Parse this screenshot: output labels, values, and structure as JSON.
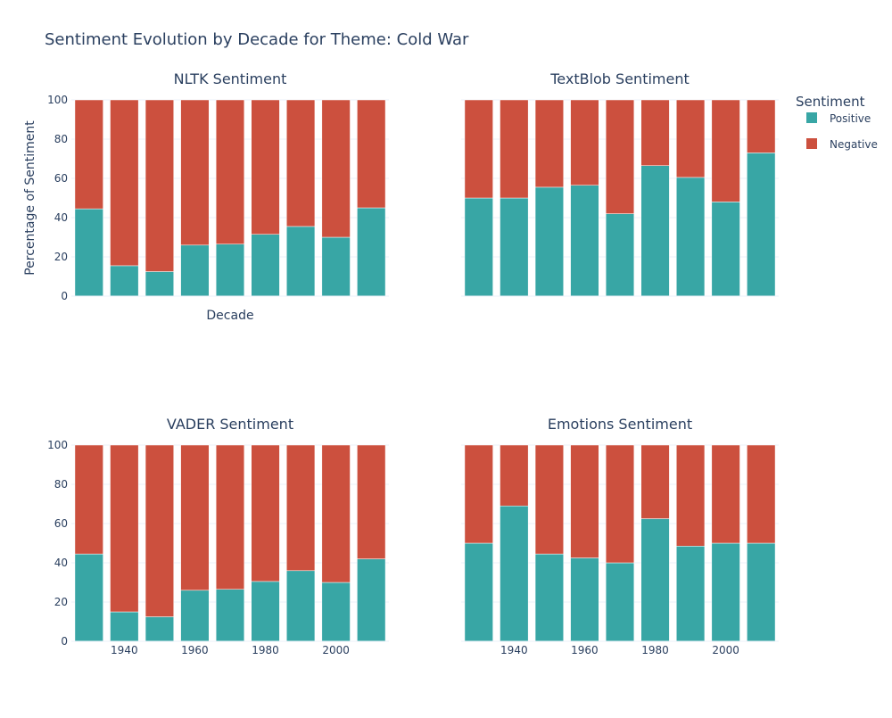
{
  "title": "Sentiment Evolution by Decade for Theme: Cold War",
  "legend": {
    "title": "Sentiment",
    "items": [
      {
        "label": "Positive",
        "color": "#38a6a5"
      },
      {
        "label": "Negative",
        "color": "#cc503e"
      }
    ]
  },
  "chart_data": [
    {
      "type": "bar",
      "title": "NLTK Sentiment",
      "xlabel": "Decade",
      "ylabel": "Percentage of Sentiment",
      "ylim": [
        0,
        100
      ],
      "yticks": [
        0,
        20,
        40,
        60,
        80,
        100
      ],
      "x": [
        1930,
        1940,
        1950,
        1960,
        1970,
        1980,
        1990,
        2000,
        2010
      ],
      "xtick_labels": [],
      "stacked": true,
      "series": [
        {
          "name": "Positive",
          "color": "#38a6a5",
          "values": [
            44.5,
            15.5,
            12.5,
            26,
            26.5,
            31.5,
            35.5,
            30,
            45
          ]
        },
        {
          "name": "Negative",
          "color": "#cc503e",
          "values": [
            55.5,
            84.5,
            87.5,
            74,
            73.5,
            68.5,
            64.5,
            70,
            55
          ]
        }
      ]
    },
    {
      "type": "bar",
      "title": "TextBlob Sentiment",
      "xlabel": "",
      "ylabel": "",
      "ylim": [
        0,
        100
      ],
      "yticks": [],
      "x": [
        1930,
        1940,
        1950,
        1960,
        1970,
        1980,
        1990,
        2000,
        2010
      ],
      "xtick_labels": [],
      "stacked": true,
      "series": [
        {
          "name": "Positive",
          "color": "#38a6a5",
          "values": [
            50,
            50,
            55.5,
            56.5,
            42,
            66.5,
            60.5,
            48,
            73
          ]
        },
        {
          "name": "Negative",
          "color": "#cc503e",
          "values": [
            50,
            50,
            44.5,
            43.5,
            58,
            33.5,
            39.5,
            52,
            27
          ]
        }
      ]
    },
    {
      "type": "bar",
      "title": "VADER Sentiment",
      "xlabel": "",
      "ylabel": "",
      "ylim": [
        0,
        100
      ],
      "yticks": [
        0,
        20,
        40,
        60,
        80,
        100
      ],
      "x": [
        1930,
        1940,
        1950,
        1960,
        1970,
        1980,
        1990,
        2000,
        2010
      ],
      "xtick_labels": [
        "1940",
        "1960",
        "1980",
        "2000"
      ],
      "stacked": true,
      "series": [
        {
          "name": "Positive",
          "color": "#38a6a5",
          "values": [
            44.5,
            15,
            12.5,
            26,
            26.5,
            30.5,
            36,
            30,
            42
          ]
        },
        {
          "name": "Negative",
          "color": "#cc503e",
          "values": [
            55.5,
            85,
            87.5,
            74,
            73.5,
            69.5,
            64,
            70,
            58
          ]
        }
      ]
    },
    {
      "type": "bar",
      "title": "Emotions Sentiment",
      "xlabel": "",
      "ylabel": "",
      "ylim": [
        0,
        100
      ],
      "yticks": [],
      "x": [
        1930,
        1940,
        1950,
        1960,
        1970,
        1980,
        1990,
        2000,
        2010
      ],
      "xtick_labels": [
        "1940",
        "1960",
        "1980",
        "2000"
      ],
      "stacked": true,
      "series": [
        {
          "name": "Positive",
          "color": "#38a6a5",
          "values": [
            50,
            69,
            44.5,
            42.5,
            40,
            62.5,
            48.5,
            50,
            50
          ]
        },
        {
          "name": "Negative",
          "color": "#cc503e",
          "values": [
            50,
            31,
            55.5,
            57.5,
            60,
            37.5,
            51.5,
            50,
            50
          ]
        }
      ]
    }
  ]
}
